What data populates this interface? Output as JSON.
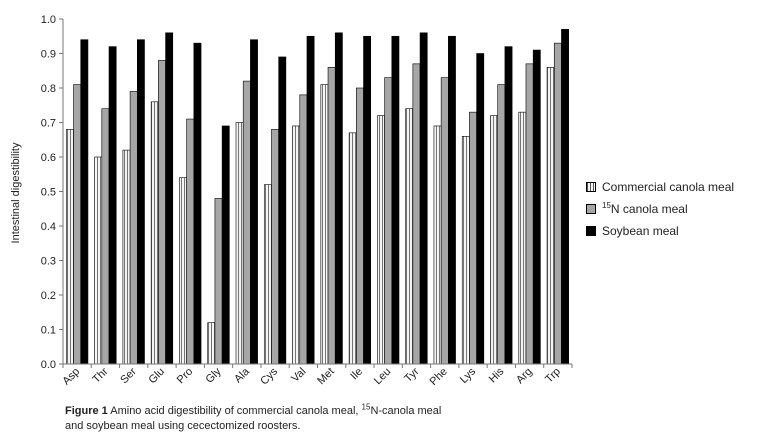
{
  "chart_data": {
    "type": "bar",
    "ylabel": "Intestinal digestibility",
    "ylim": [
      0,
      1.0
    ],
    "yticks": [
      "0.0",
      "0.1",
      "0.2",
      "0.3",
      "0.4",
      "0.5",
      "0.6",
      "0.7",
      "0.8",
      "0.9",
      "1.0"
    ],
    "categories": [
      "Asp",
      "Thr",
      "Ser",
      "Glu",
      "Pro",
      "Gly",
      "Ala",
      "Cys",
      "Val",
      "Met",
      "Ile",
      "Leu",
      "Tyr",
      "Phe",
      "Lys",
      "His",
      "Arg",
      "Trp"
    ],
    "series": [
      {
        "name": "Commercial canola meal",
        "values": [
          0.68,
          0.6,
          0.62,
          0.76,
          0.54,
          0.12,
          0.7,
          0.52,
          0.69,
          0.81,
          0.67,
          0.72,
          0.74,
          0.69,
          0.66,
          0.72,
          0.73,
          0.86
        ]
      },
      {
        "name_sup": "15",
        "name_rest": "N canola meal",
        "values": [
          0.81,
          0.74,
          0.79,
          0.88,
          0.71,
          0.48,
          0.82,
          0.68,
          0.78,
          0.86,
          0.8,
          0.83,
          0.87,
          0.83,
          0.73,
          0.81,
          0.87,
          0.93
        ]
      },
      {
        "name": "Soybean meal",
        "values": [
          0.94,
          0.92,
          0.94,
          0.96,
          0.93,
          0.69,
          0.94,
          0.89,
          0.95,
          0.96,
          0.95,
          0.95,
          0.96,
          0.95,
          0.9,
          0.92,
          0.91,
          0.97
        ]
      }
    ],
    "legend_position": "right",
    "grid": false
  },
  "colors": {
    "soybean": "#000000",
    "n15": "#a6a6a6",
    "commercial": "#f2f2f2"
  },
  "caption": {
    "label": "Figure 1",
    "part1": " Amino acid digestibility of commercial canola meal, ",
    "sup": "15",
    "part2": "N-canola meal",
    "line2": "and soybean meal using cecectomized roosters."
  }
}
